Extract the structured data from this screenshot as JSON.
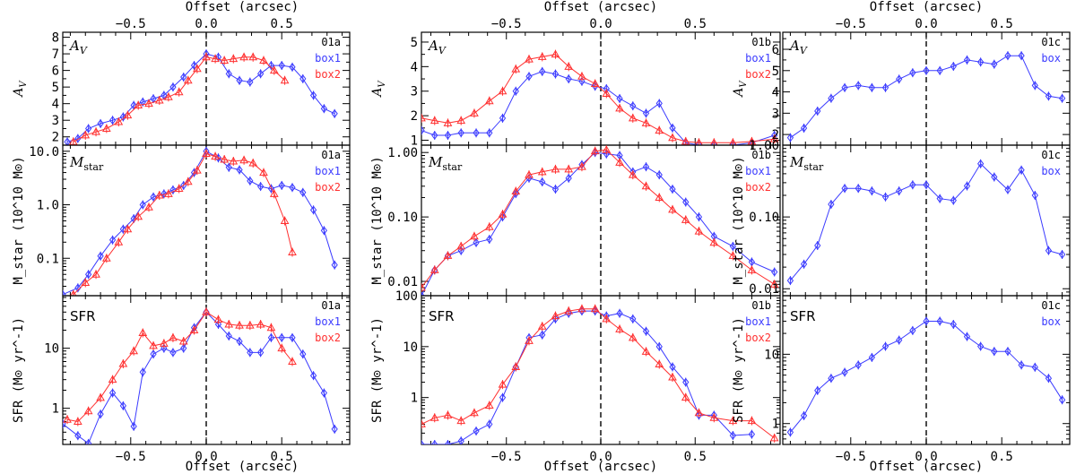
{
  "colors": {
    "box1": "#3b3bff",
    "box2": "#ff3030",
    "axes": "#000000"
  },
  "labels": {
    "top_axis": "Offset (arcsec)",
    "bottom_axis": "Offset (arcsec)",
    "row_av_ylabel": "A_V",
    "row_av_inlabel": "A_V",
    "row_mstar_ylabel": "M_star (10^10 M⊙)",
    "row_mstar_inlabel": "M_star",
    "row_sfr_ylabel": "SFR (M⊙ yr^-1)",
    "row_sfr_inlabel": "SFR"
  },
  "chart_data": [
    {
      "type": "line",
      "panel": "01a",
      "row": "A_V",
      "scale": "linear",
      "xlim": [
        -0.95,
        0.95
      ],
      "ylim": [
        1.5,
        8.3
      ],
      "xticks": [
        -0.5,
        0.0,
        0.5
      ],
      "yticks": [
        2,
        3,
        4,
        5,
        6,
        7,
        8
      ],
      "legend": [
        "01a",
        "box1",
        "box2"
      ],
      "series": [
        {
          "name": "box1",
          "marker": "diamond",
          "x": [
            -0.92,
            -0.85,
            -0.78,
            -0.7,
            -0.62,
            -0.55,
            -0.48,
            -0.42,
            -0.35,
            -0.28,
            -0.22,
            -0.15,
            -0.08,
            0.0,
            0.08,
            0.15,
            0.22,
            0.29,
            0.36,
            0.43,
            0.5,
            0.57,
            0.64,
            0.71,
            0.78,
            0.85
          ],
          "y": [
            1.7,
            1.9,
            2.5,
            2.8,
            3.0,
            3.2,
            3.9,
            4.1,
            4.3,
            4.5,
            5.0,
            5.6,
            6.3,
            7.0,
            6.8,
            5.8,
            5.4,
            5.3,
            5.8,
            6.3,
            6.3,
            6.2,
            5.5,
            4.5,
            3.7,
            3.4
          ]
        },
        {
          "name": "box2",
          "marker": "triangle",
          "x": [
            -0.88,
            -0.8,
            -0.73,
            -0.66,
            -0.58,
            -0.52,
            -0.45,
            -0.38,
            -0.31,
            -0.25,
            -0.18,
            -0.12,
            -0.06,
            0.0,
            0.06,
            0.12,
            0.18,
            0.25,
            0.31,
            0.38,
            0.45,
            0.52
          ],
          "y": [
            1.7,
            2.1,
            2.3,
            2.5,
            2.9,
            3.3,
            3.9,
            4.0,
            4.2,
            4.4,
            4.7,
            5.4,
            6.1,
            6.8,
            6.7,
            6.6,
            6.7,
            6.8,
            6.8,
            6.6,
            6.0,
            5.4
          ]
        }
      ]
    },
    {
      "type": "line",
      "panel": "01b",
      "row": "A_V",
      "scale": "linear",
      "xlim": [
        -0.95,
        0.95
      ],
      "ylim": [
        0.8,
        5.4
      ],
      "xticks": [
        -0.5,
        0.0,
        0.5
      ],
      "yticks": [
        1,
        2,
        3,
        4,
        5
      ],
      "legend": [
        "01b",
        "box1",
        "box2"
      ],
      "series": [
        {
          "name": "box1",
          "marker": "diamond",
          "x": [
            -0.95,
            -0.88,
            -0.81,
            -0.74,
            -0.66,
            -0.59,
            -0.52,
            -0.45,
            -0.38,
            -0.31,
            -0.24,
            -0.17,
            -0.1,
            -0.03,
            0.03,
            0.1,
            0.17,
            0.24,
            0.31,
            0.38,
            0.45,
            0.52,
            0.6,
            0.7,
            0.8,
            0.92
          ],
          "y": [
            1.4,
            1.2,
            1.2,
            1.3,
            1.3,
            1.3,
            1.9,
            3.0,
            3.6,
            3.8,
            3.7,
            3.5,
            3.4,
            3.2,
            3.1,
            2.7,
            2.4,
            2.1,
            2.5,
            1.5,
            0.9,
            0.8,
            0.8,
            0.8,
            0.9,
            1.2
          ]
        },
        {
          "name": "box2",
          "marker": "triangle",
          "x": [
            -0.95,
            -0.88,
            -0.81,
            -0.74,
            -0.67,
            -0.59,
            -0.52,
            -0.45,
            -0.38,
            -0.31,
            -0.24,
            -0.17,
            -0.1,
            -0.03,
            0.03,
            0.1,
            0.17,
            0.24,
            0.31,
            0.38,
            0.45,
            0.52,
            0.6,
            0.7,
            0.8,
            0.92
          ],
          "y": [
            1.9,
            1.8,
            1.7,
            1.8,
            2.1,
            2.6,
            3.0,
            3.9,
            4.3,
            4.4,
            4.5,
            4.0,
            3.6,
            3.3,
            2.9,
            2.3,
            1.9,
            1.7,
            1.4,
            1.1,
            0.95,
            0.9,
            0.9,
            0.9,
            0.95,
            1.05
          ]
        }
      ]
    },
    {
      "type": "line",
      "panel": "01c",
      "row": "A_V",
      "scale": "linear",
      "xlim": [
        -0.95,
        0.95
      ],
      "ylim": [
        1.5,
        6.8
      ],
      "xticks": [
        -0.5,
        0.0,
        0.5
      ],
      "yticks": [
        2,
        3,
        4,
        5,
        6
      ],
      "legend": [
        "01c",
        "box"
      ],
      "series": [
        {
          "name": "box",
          "marker": "diamond",
          "x": [
            -0.9,
            -0.81,
            -0.72,
            -0.63,
            -0.54,
            -0.45,
            -0.36,
            -0.27,
            -0.18,
            -0.09,
            0.0,
            0.09,
            0.18,
            0.27,
            0.36,
            0.45,
            0.54,
            0.63,
            0.72,
            0.81,
            0.9
          ],
          "y": [
            1.85,
            2.3,
            3.1,
            3.7,
            4.2,
            4.3,
            4.2,
            4.2,
            4.6,
            4.9,
            5.0,
            5.0,
            5.2,
            5.5,
            5.4,
            5.3,
            5.7,
            5.7,
            4.3,
            3.8,
            3.7
          ]
        }
      ]
    },
    {
      "type": "line",
      "panel": "01a",
      "row": "M_star",
      "scale": "log",
      "xlim": [
        -0.95,
        0.95
      ],
      "ylim": [
        0.02,
        13
      ],
      "xticks": [
        -0.5,
        0.0,
        0.5
      ],
      "yticks": [
        0.1,
        1.0,
        10.0
      ],
      "ytick_labels": [
        "0.1",
        "1.0",
        "10.0"
      ],
      "legend": [
        "01a",
        "box1",
        "box2"
      ],
      "series": [
        {
          "name": "box1",
          "marker": "diamond",
          "x": [
            -0.95,
            -0.85,
            -0.78,
            -0.7,
            -0.62,
            -0.55,
            -0.48,
            -0.42,
            -0.35,
            -0.28,
            -0.22,
            -0.15,
            -0.08,
            0.0,
            0.08,
            0.15,
            0.22,
            0.29,
            0.36,
            0.43,
            0.5,
            0.57,
            0.64,
            0.71,
            0.78,
            0.85
          ],
          "y": [
            0.021,
            0.028,
            0.05,
            0.11,
            0.22,
            0.35,
            0.55,
            1.0,
            1.4,
            1.6,
            1.9,
            2.3,
            4.0,
            10.0,
            7.5,
            5.0,
            4.5,
            2.8,
            2.2,
            2.0,
            2.3,
            2.1,
            1.7,
            0.8,
            0.33,
            0.075
          ]
        },
        {
          "name": "box2",
          "marker": "triangle",
          "x": [
            -0.88,
            -0.8,
            -0.73,
            -0.66,
            -0.58,
            -0.52,
            -0.45,
            -0.38,
            -0.31,
            -0.25,
            -0.18,
            -0.12,
            -0.06,
            0.0,
            0.06,
            0.12,
            0.18,
            0.25,
            0.31,
            0.38,
            0.45,
            0.52,
            0.57
          ],
          "y": [
            0.021,
            0.035,
            0.05,
            0.1,
            0.2,
            0.35,
            0.6,
            0.9,
            1.5,
            1.6,
            2.0,
            2.7,
            4.4,
            9.0,
            8.0,
            7.0,
            6.5,
            6.8,
            6.0,
            4.0,
            1.6,
            0.5,
            0.13
          ]
        }
      ]
    },
    {
      "type": "line",
      "panel": "01b",
      "row": "M_star",
      "scale": "log",
      "xlim": [
        -0.95,
        0.95
      ],
      "ylim": [
        0.006,
        1.3
      ],
      "xticks": [
        -0.5,
        0.0,
        0.5
      ],
      "yticks": [
        0.01,
        0.1,
        1.0
      ],
      "ytick_labels": [
        "0.01",
        "0.10",
        "1.00"
      ],
      "legend": [
        "01b",
        "box1",
        "box2"
      ],
      "series": [
        {
          "name": "box1",
          "marker": "diamond",
          "x": [
            -0.95,
            -0.88,
            -0.81,
            -0.74,
            -0.66,
            -0.59,
            -0.52,
            -0.45,
            -0.38,
            -0.31,
            -0.24,
            -0.17,
            -0.1,
            -0.03,
            0.03,
            0.1,
            0.17,
            0.24,
            0.31,
            0.38,
            0.45,
            0.52,
            0.6,
            0.7,
            0.8,
            0.92
          ],
          "y": [
            0.006,
            0.015,
            0.025,
            0.03,
            0.04,
            0.045,
            0.1,
            0.23,
            0.4,
            0.35,
            0.27,
            0.4,
            0.65,
            1.0,
            0.95,
            0.9,
            0.5,
            0.6,
            0.45,
            0.27,
            0.17,
            0.1,
            0.05,
            0.035,
            0.02,
            0.014
          ]
        },
        {
          "name": "box2",
          "marker": "triangle",
          "x": [
            -0.95,
            -0.88,
            -0.81,
            -0.74,
            -0.67,
            -0.59,
            -0.52,
            -0.45,
            -0.38,
            -0.31,
            -0.24,
            -0.17,
            -0.1,
            -0.03,
            0.03,
            0.1,
            0.17,
            0.24,
            0.31,
            0.38,
            0.45,
            0.52,
            0.6,
            0.7,
            0.8,
            0.92
          ],
          "y": [
            0.008,
            0.015,
            0.025,
            0.035,
            0.05,
            0.07,
            0.11,
            0.25,
            0.45,
            0.5,
            0.55,
            0.55,
            0.6,
            1.05,
            1.1,
            0.7,
            0.45,
            0.3,
            0.2,
            0.13,
            0.09,
            0.06,
            0.04,
            0.025,
            0.015,
            0.009
          ]
        }
      ]
    },
    {
      "type": "line",
      "panel": "01c",
      "row": "M_star",
      "scale": "log",
      "xlim": [
        -0.95,
        0.95
      ],
      "ylim": [
        0.008,
        1.0
      ],
      "xticks": [
        -0.5,
        0.0,
        0.5
      ],
      "yticks": [
        0.01,
        0.1,
        1.0
      ],
      "ytick_labels": [
        "0.01",
        "0.10",
        "1.00"
      ],
      "legend": [
        "01c",
        "box"
      ],
      "series": [
        {
          "name": "box",
          "marker": "diamond",
          "x": [
            -0.9,
            -0.81,
            -0.72,
            -0.63,
            -0.54,
            -0.45,
            -0.36,
            -0.27,
            -0.18,
            -0.09,
            0.0,
            0.09,
            0.18,
            0.27,
            0.36,
            0.45,
            0.54,
            0.63,
            0.72,
            0.81,
            0.9
          ],
          "y": [
            0.013,
            0.022,
            0.04,
            0.15,
            0.25,
            0.25,
            0.23,
            0.19,
            0.23,
            0.28,
            0.28,
            0.18,
            0.17,
            0.27,
            0.55,
            0.36,
            0.24,
            0.45,
            0.2,
            0.034,
            0.03
          ]
        }
      ]
    },
    {
      "type": "line",
      "panel": "01a",
      "row": "SFR",
      "scale": "log",
      "xlim": [
        -0.95,
        0.95
      ],
      "ylim": [
        0.25,
        75
      ],
      "xticks": [
        -0.5,
        0.0,
        0.5
      ],
      "yticks": [
        1,
        10
      ],
      "ytick_labels": [
        "1",
        "10"
      ],
      "legend": [
        "01a",
        "box1",
        "box2"
      ],
      "series": [
        {
          "name": "box1",
          "marker": "diamond",
          "x": [
            -0.95,
            -0.85,
            -0.78,
            -0.7,
            -0.62,
            -0.55,
            -0.48,
            -0.42,
            -0.35,
            -0.28,
            -0.22,
            -0.15,
            -0.08,
            0.0,
            0.08,
            0.15,
            0.22,
            0.29,
            0.36,
            0.43,
            0.5,
            0.57,
            0.64,
            0.71,
            0.78,
            0.85
          ],
          "y": [
            0.55,
            0.35,
            0.26,
            0.8,
            1.8,
            1.1,
            0.5,
            4.0,
            8.0,
            10.0,
            8.5,
            10.0,
            22.0,
            40.0,
            25.0,
            16.0,
            13.0,
            8.5,
            8.5,
            15.0,
            15.0,
            15.0,
            8.0,
            3.5,
            1.8,
            0.45
          ]
        },
        {
          "name": "box2",
          "marker": "triangle",
          "x": [
            -0.92,
            -0.85,
            -0.78,
            -0.7,
            -0.62,
            -0.55,
            -0.48,
            -0.42,
            -0.35,
            -0.28,
            -0.22,
            -0.15,
            -0.08,
            0.0,
            0.08,
            0.15,
            0.22,
            0.29,
            0.36,
            0.43,
            0.5,
            0.57
          ],
          "y": [
            0.65,
            0.6,
            0.9,
            1.5,
            3.0,
            5.5,
            9.0,
            18.0,
            11.0,
            12.0,
            15.0,
            13.0,
            20.0,
            40.0,
            30.0,
            25.0,
            24.0,
            24.0,
            25.0,
            22.0,
            10.0,
            6.0
          ]
        }
      ]
    },
    {
      "type": "line",
      "panel": "01b",
      "row": "SFR",
      "scale": "log",
      "xlim": [
        -0.95,
        0.95
      ],
      "ylim": [
        0.12,
        100
      ],
      "xticks": [
        -0.5,
        0.0,
        0.5
      ],
      "yticks": [
        1,
        10,
        100
      ],
      "ytick_labels": [
        "1",
        "10",
        "100"
      ],
      "legend": [
        "01b",
        "box1",
        "box2"
      ],
      "series": [
        {
          "name": "box1",
          "marker": "diamond",
          "x": [
            -0.95,
            -0.88,
            -0.81,
            -0.74,
            -0.66,
            -0.59,
            -0.52,
            -0.45,
            -0.38,
            -0.31,
            -0.24,
            -0.17,
            -0.1,
            -0.03,
            0.03,
            0.1,
            0.17,
            0.24,
            0.31,
            0.38,
            0.45,
            0.52,
            0.6,
            0.7,
            0.8
          ],
          "y": [
            0.12,
            0.12,
            0.12,
            0.14,
            0.22,
            0.3,
            1.0,
            4.0,
            15.0,
            17.0,
            35.0,
            45.0,
            50.0,
            50.0,
            40.0,
            45.0,
            35.0,
            20.0,
            10.0,
            4.0,
            2.0,
            0.45,
            0.45,
            0.18,
            0.19
          ]
        },
        {
          "name": "box2",
          "marker": "triangle",
          "x": [
            -0.95,
            -0.88,
            -0.81,
            -0.74,
            -0.67,
            -0.59,
            -0.52,
            -0.45,
            -0.38,
            -0.31,
            -0.24,
            -0.17,
            -0.1,
            -0.03,
            0.03,
            0.1,
            0.17,
            0.24,
            0.31,
            0.38,
            0.45,
            0.52,
            0.6,
            0.7,
            0.8,
            0.92
          ],
          "y": [
            0.3,
            0.4,
            0.45,
            0.35,
            0.5,
            0.7,
            1.8,
            4.0,
            13.0,
            25.0,
            40.0,
            50.0,
            55.0,
            55.0,
            35.0,
            22.0,
            15.0,
            8.0,
            4.5,
            2.5,
            1.0,
            0.5,
            0.4,
            0.35,
            0.35,
            0.16
          ]
        }
      ]
    },
    {
      "type": "line",
      "panel": "01c",
      "row": "SFR",
      "scale": "log",
      "xlim": [
        -0.95,
        0.95
      ],
      "ylim": [
        0.5,
        70
      ],
      "xticks": [
        -0.5,
        0.0,
        0.5
      ],
      "yticks": [
        1,
        10
      ],
      "ytick_labels": [
        "1",
        "10"
      ],
      "legend": [
        "01c",
        "box"
      ],
      "series": [
        {
          "name": "box",
          "marker": "diamond",
          "x": [
            -0.9,
            -0.81,
            -0.72,
            -0.63,
            -0.54,
            -0.45,
            -0.36,
            -0.27,
            -0.18,
            -0.09,
            0.0,
            0.09,
            0.18,
            0.27,
            0.36,
            0.45,
            0.54,
            0.63,
            0.72,
            0.81,
            0.9
          ],
          "y": [
            0.75,
            1.3,
            3.0,
            4.5,
            5.5,
            7.0,
            9.0,
            13.0,
            16.0,
            22.0,
            30.0,
            30.0,
            27.0,
            18.0,
            13.0,
            11.0,
            11.0,
            7.0,
            6.5,
            4.5,
            2.2
          ]
        }
      ]
    }
  ]
}
